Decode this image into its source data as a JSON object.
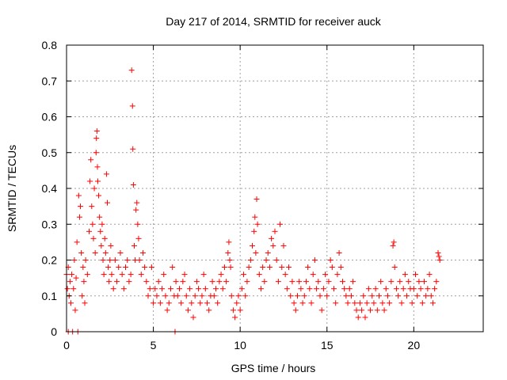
{
  "chart_data": {
    "type": "scatter",
    "title": "Day 217 of 2014, SRMTID for receiver auck",
    "xlabel": "GPS time / hours",
    "ylabel": "SRMTID / TECUs",
    "xlim": [
      0,
      24
    ],
    "ylim": [
      0,
      0.8
    ],
    "xticks": [
      0,
      5,
      10,
      15,
      20
    ],
    "xtick_labels": [
      "0",
      "5",
      "10",
      "15",
      "20"
    ],
    "yticks": [
      0,
      0.1,
      0.2,
      0.3,
      0.4,
      0.5,
      0.6,
      0.7,
      0.8
    ],
    "ytick_labels": [
      "0",
      "0.1",
      "0.2",
      "0.3",
      "0.4",
      "0.5",
      "0.6",
      "0.7",
      "0.8"
    ],
    "grid": true,
    "marker": "+",
    "marker_color": "#ff0000",
    "series": [
      {
        "name": "SRMTID",
        "points": [
          [
            0.0,
            0.16
          ],
          [
            0.05,
            0.12
          ],
          [
            0.1,
            0.0
          ],
          [
            0.1,
            0.18
          ],
          [
            0.15,
            0.1
          ],
          [
            0.2,
            0.14
          ],
          [
            0.25,
            0.08
          ],
          [
            0.3,
            0.16
          ],
          [
            0.35,
            0.0
          ],
          [
            0.4,
            0.12
          ],
          [
            0.45,
            0.2
          ],
          [
            0.5,
            0.06
          ],
          [
            0.55,
            0.15
          ],
          [
            0.6,
            0.25
          ],
          [
            0.65,
            0.0
          ],
          [
            0.7,
            0.38
          ],
          [
            0.75,
            0.32
          ],
          [
            0.8,
            0.35
          ],
          [
            0.85,
            0.22
          ],
          [
            0.9,
            0.1
          ],
          [
            0.95,
            0.18
          ],
          [
            1.0,
            0.14
          ],
          [
            1.05,
            0.08
          ],
          [
            1.1,
            0.2
          ],
          [
            1.2,
            0.16
          ],
          [
            1.3,
            0.28
          ],
          [
            1.35,
            0.42
          ],
          [
            1.4,
            0.48
          ],
          [
            1.45,
            0.35
          ],
          [
            1.5,
            0.3
          ],
          [
            1.55,
            0.26
          ],
          [
            1.6,
            0.4
          ],
          [
            1.65,
            0.22
          ],
          [
            1.7,
            0.5
          ],
          [
            1.72,
            0.54
          ],
          [
            1.75,
            0.56
          ],
          [
            1.78,
            0.46
          ],
          [
            1.8,
            0.42
          ],
          [
            1.85,
            0.38
          ],
          [
            1.9,
            0.32
          ],
          [
            1.95,
            0.28
          ],
          [
            2.0,
            0.24
          ],
          [
            2.05,
            0.3
          ],
          [
            2.1,
            0.2
          ],
          [
            2.15,
            0.16
          ],
          [
            2.2,
            0.26
          ],
          [
            2.25,
            0.22
          ],
          [
            2.3,
            0.44
          ],
          [
            2.35,
            0.36
          ],
          [
            2.4,
            0.18
          ],
          [
            2.45,
            0.14
          ],
          [
            2.5,
            0.2
          ],
          [
            2.55,
            0.24
          ],
          [
            2.6,
            0.16
          ],
          [
            2.7,
            0.12
          ],
          [
            2.8,
            0.2
          ],
          [
            2.9,
            0.14
          ],
          [
            3.0,
            0.18
          ],
          [
            3.1,
            0.22
          ],
          [
            3.2,
            0.16
          ],
          [
            3.3,
            0.12
          ],
          [
            3.4,
            0.18
          ],
          [
            3.5,
            0.2
          ],
          [
            3.6,
            0.14
          ],
          [
            3.7,
            0.16
          ],
          [
            3.75,
            0.73
          ],
          [
            3.8,
            0.63
          ],
          [
            3.82,
            0.51
          ],
          [
            3.85,
            0.41
          ],
          [
            3.9,
            0.24
          ],
          [
            3.95,
            0.2
          ],
          [
            4.0,
            0.34
          ],
          [
            4.05,
            0.36
          ],
          [
            4.1,
            0.3
          ],
          [
            4.15,
            0.26
          ],
          [
            4.2,
            0.2
          ],
          [
            4.3,
            0.16
          ],
          [
            4.4,
            0.22
          ],
          [
            4.5,
            0.18
          ],
          [
            4.6,
            0.14
          ],
          [
            4.7,
            0.1
          ],
          [
            4.8,
            0.12
          ],
          [
            4.9,
            0.18
          ],
          [
            5.0,
            0.08
          ],
          [
            5.1,
            0.12
          ],
          [
            5.2,
            0.1
          ],
          [
            5.3,
            0.14
          ],
          [
            5.4,
            0.08
          ],
          [
            5.5,
            0.12
          ],
          [
            5.6,
            0.16
          ],
          [
            5.7,
            0.1
          ],
          [
            5.8,
            0.06
          ],
          [
            5.9,
            0.08
          ],
          [
            6.0,
            0.12
          ],
          [
            6.1,
            0.18
          ],
          [
            6.2,
            0.1
          ],
          [
            6.25,
            0.0
          ],
          [
            6.3,
            0.14
          ],
          [
            6.4,
            0.1
          ],
          [
            6.5,
            0.12
          ],
          [
            6.6,
            0.08
          ],
          [
            6.7,
            0.14
          ],
          [
            6.8,
            0.16
          ],
          [
            6.9,
            0.1
          ],
          [
            7.0,
            0.06
          ],
          [
            7.1,
            0.12
          ],
          [
            7.2,
            0.08
          ],
          [
            7.3,
            0.04
          ],
          [
            7.4,
            0.1
          ],
          [
            7.5,
            0.14
          ],
          [
            7.6,
            0.12
          ],
          [
            7.7,
            0.08
          ],
          [
            7.8,
            0.1
          ],
          [
            7.9,
            0.16
          ],
          [
            8.0,
            0.12
          ],
          [
            8.1,
            0.08
          ],
          [
            8.2,
            0.06
          ],
          [
            8.3,
            0.1
          ],
          [
            8.4,
            0.14
          ],
          [
            8.5,
            0.1
          ],
          [
            8.6,
            0.12
          ],
          [
            8.7,
            0.08
          ],
          [
            8.8,
            0.14
          ],
          [
            8.9,
            0.16
          ],
          [
            9.0,
            0.12
          ],
          [
            9.1,
            0.18
          ],
          [
            9.2,
            0.14
          ],
          [
            9.3,
            0.22
          ],
          [
            9.35,
            0.25
          ],
          [
            9.4,
            0.2
          ],
          [
            9.45,
            0.18
          ],
          [
            9.5,
            0.1
          ],
          [
            9.6,
            0.06
          ],
          [
            9.7,
            0.04
          ],
          [
            9.8,
            0.08
          ],
          [
            9.9,
            0.1
          ],
          [
            10.0,
            0.06
          ],
          [
            10.1,
            0.12
          ],
          [
            10.2,
            0.16
          ],
          [
            10.3,
            0.1
          ],
          [
            10.4,
            0.14
          ],
          [
            10.5,
            0.18
          ],
          [
            10.6,
            0.2
          ],
          [
            10.7,
            0.24
          ],
          [
            10.8,
            0.28
          ],
          [
            10.85,
            0.32
          ],
          [
            10.9,
            0.22
          ],
          [
            10.95,
            0.37
          ],
          [
            11.0,
            0.3
          ],
          [
            11.1,
            0.16
          ],
          [
            11.2,
            0.12
          ],
          [
            11.3,
            0.18
          ],
          [
            11.4,
            0.14
          ],
          [
            11.5,
            0.2
          ],
          [
            11.6,
            0.22
          ],
          [
            11.7,
            0.18
          ],
          [
            11.8,
            0.26
          ],
          [
            11.9,
            0.24
          ],
          [
            12.0,
            0.28
          ],
          [
            12.1,
            0.2
          ],
          [
            12.2,
            0.14
          ],
          [
            12.3,
            0.3
          ],
          [
            12.4,
            0.18
          ],
          [
            12.5,
            0.24
          ],
          [
            12.6,
            0.16
          ],
          [
            12.7,
            0.12
          ],
          [
            12.8,
            0.18
          ],
          [
            12.9,
            0.1
          ],
          [
            13.0,
            0.14
          ],
          [
            13.1,
            0.08
          ],
          [
            13.2,
            0.06
          ],
          [
            13.3,
            0.1
          ],
          [
            13.4,
            0.14
          ],
          [
            13.5,
            0.12
          ],
          [
            13.6,
            0.08
          ],
          [
            13.7,
            0.1
          ],
          [
            13.8,
            0.14
          ],
          [
            13.9,
            0.18
          ],
          [
            14.0,
            0.12
          ],
          [
            14.1,
            0.08
          ],
          [
            14.2,
            0.16
          ],
          [
            14.3,
            0.2
          ],
          [
            14.4,
            0.12
          ],
          [
            14.5,
            0.14
          ],
          [
            14.6,
            0.1
          ],
          [
            14.7,
            0.06
          ],
          [
            14.8,
            0.12
          ],
          [
            14.9,
            0.16
          ],
          [
            15.0,
            0.1
          ],
          [
            15.1,
            0.14
          ],
          [
            15.2,
            0.2
          ],
          [
            15.3,
            0.18
          ],
          [
            15.4,
            0.12
          ],
          [
            15.5,
            0.08
          ],
          [
            15.6,
            0.16
          ],
          [
            15.7,
            0.22
          ],
          [
            15.8,
            0.18
          ],
          [
            15.9,
            0.14
          ],
          [
            16.0,
            0.12
          ],
          [
            16.1,
            0.1
          ],
          [
            16.2,
            0.08
          ],
          [
            16.3,
            0.12
          ],
          [
            16.4,
            0.1
          ],
          [
            16.5,
            0.14
          ],
          [
            16.6,
            0.08
          ],
          [
            16.7,
            0.06
          ],
          [
            16.8,
            0.04
          ],
          [
            16.9,
            0.08
          ],
          [
            17.0,
            0.06
          ],
          [
            17.1,
            0.1
          ],
          [
            17.2,
            0.04
          ],
          [
            17.3,
            0.08
          ],
          [
            17.4,
            0.12
          ],
          [
            17.5,
            0.06
          ],
          [
            17.6,
            0.1
          ],
          [
            17.7,
            0.08
          ],
          [
            17.8,
            0.12
          ],
          [
            17.9,
            0.06
          ],
          [
            18.0,
            0.1
          ],
          [
            18.1,
            0.14
          ],
          [
            18.2,
            0.08
          ],
          [
            18.3,
            0.06
          ],
          [
            18.4,
            0.12
          ],
          [
            18.5,
            0.1
          ],
          [
            18.6,
            0.08
          ],
          [
            18.7,
            0.14
          ],
          [
            18.8,
            0.24
          ],
          [
            18.85,
            0.25
          ],
          [
            18.9,
            0.18
          ],
          [
            19.0,
            0.12
          ],
          [
            19.1,
            0.1
          ],
          [
            19.2,
            0.14
          ],
          [
            19.3,
            0.08
          ],
          [
            19.4,
            0.12
          ],
          [
            19.5,
            0.16
          ],
          [
            19.6,
            0.1
          ],
          [
            19.7,
            0.14
          ],
          [
            19.8,
            0.12
          ],
          [
            19.9,
            0.08
          ],
          [
            20.0,
            0.12
          ],
          [
            20.1,
            0.16
          ],
          [
            20.2,
            0.1
          ],
          [
            20.3,
            0.14
          ],
          [
            20.4,
            0.12
          ],
          [
            20.5,
            0.08
          ],
          [
            20.6,
            0.14
          ],
          [
            20.7,
            0.1
          ],
          [
            20.8,
            0.12
          ],
          [
            20.9,
            0.16
          ],
          [
            21.0,
            0.1
          ],
          [
            21.1,
            0.08
          ],
          [
            21.2,
            0.12
          ],
          [
            21.3,
            0.14
          ],
          [
            21.4,
            0.22
          ],
          [
            21.45,
            0.21
          ],
          [
            21.5,
            0.2
          ]
        ]
      }
    ]
  }
}
